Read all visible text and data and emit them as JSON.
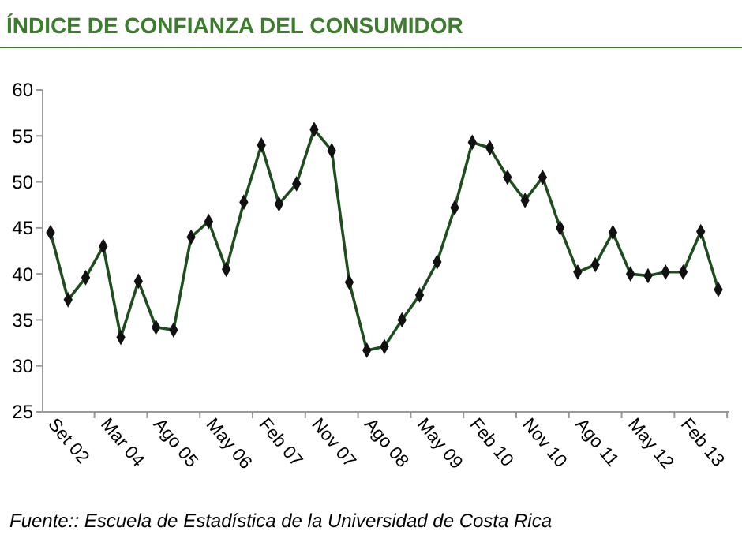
{
  "chart_data": {
    "type": "line",
    "title": "ÍNDICE DE CONFIANZA DEL CONSUMIDOR",
    "categories": [
      "Set 02",
      null,
      null,
      "Mar 04",
      null,
      null,
      "Ago 05",
      null,
      null,
      "May 06",
      null,
      null,
      "Feb 07",
      null,
      null,
      "Nov 07",
      null,
      null,
      "Ago 08",
      null,
      null,
      "May 09",
      null,
      null,
      "Feb 10",
      null,
      null,
      "Nov 10",
      null,
      null,
      "Ago 11",
      null,
      null,
      "May 12",
      null,
      null,
      "Feb 13",
      null,
      null
    ],
    "series": [
      {
        "color": "#1e4d1e",
        "values": [
          44.5,
          37.2,
          39.6,
          43,
          33.1,
          39.2,
          34.2,
          33.9,
          44,
          45.7,
          40.5,
          47.8,
          54,
          47.6,
          49.8,
          55.7,
          53.4,
          39.1,
          31.7,
          32.1,
          35,
          37.7,
          41.3,
          47.2,
          54.3,
          53.7,
          50.5,
          48,
          50.5,
          45,
          40.2,
          41,
          44.5,
          40,
          39.8,
          40.2,
          40.2,
          44.6,
          38.3
        ]
      }
    ],
    "ylim": [
      25,
      60
    ],
    "yticks": [
      25,
      30,
      35,
      40,
      45,
      50,
      55,
      60
    ],
    "marker": "diamond",
    "grid": false,
    "annotations": [
      "Fuente:: Escuela de Estadística de la Universidad de Costa Rica"
    ]
  }
}
